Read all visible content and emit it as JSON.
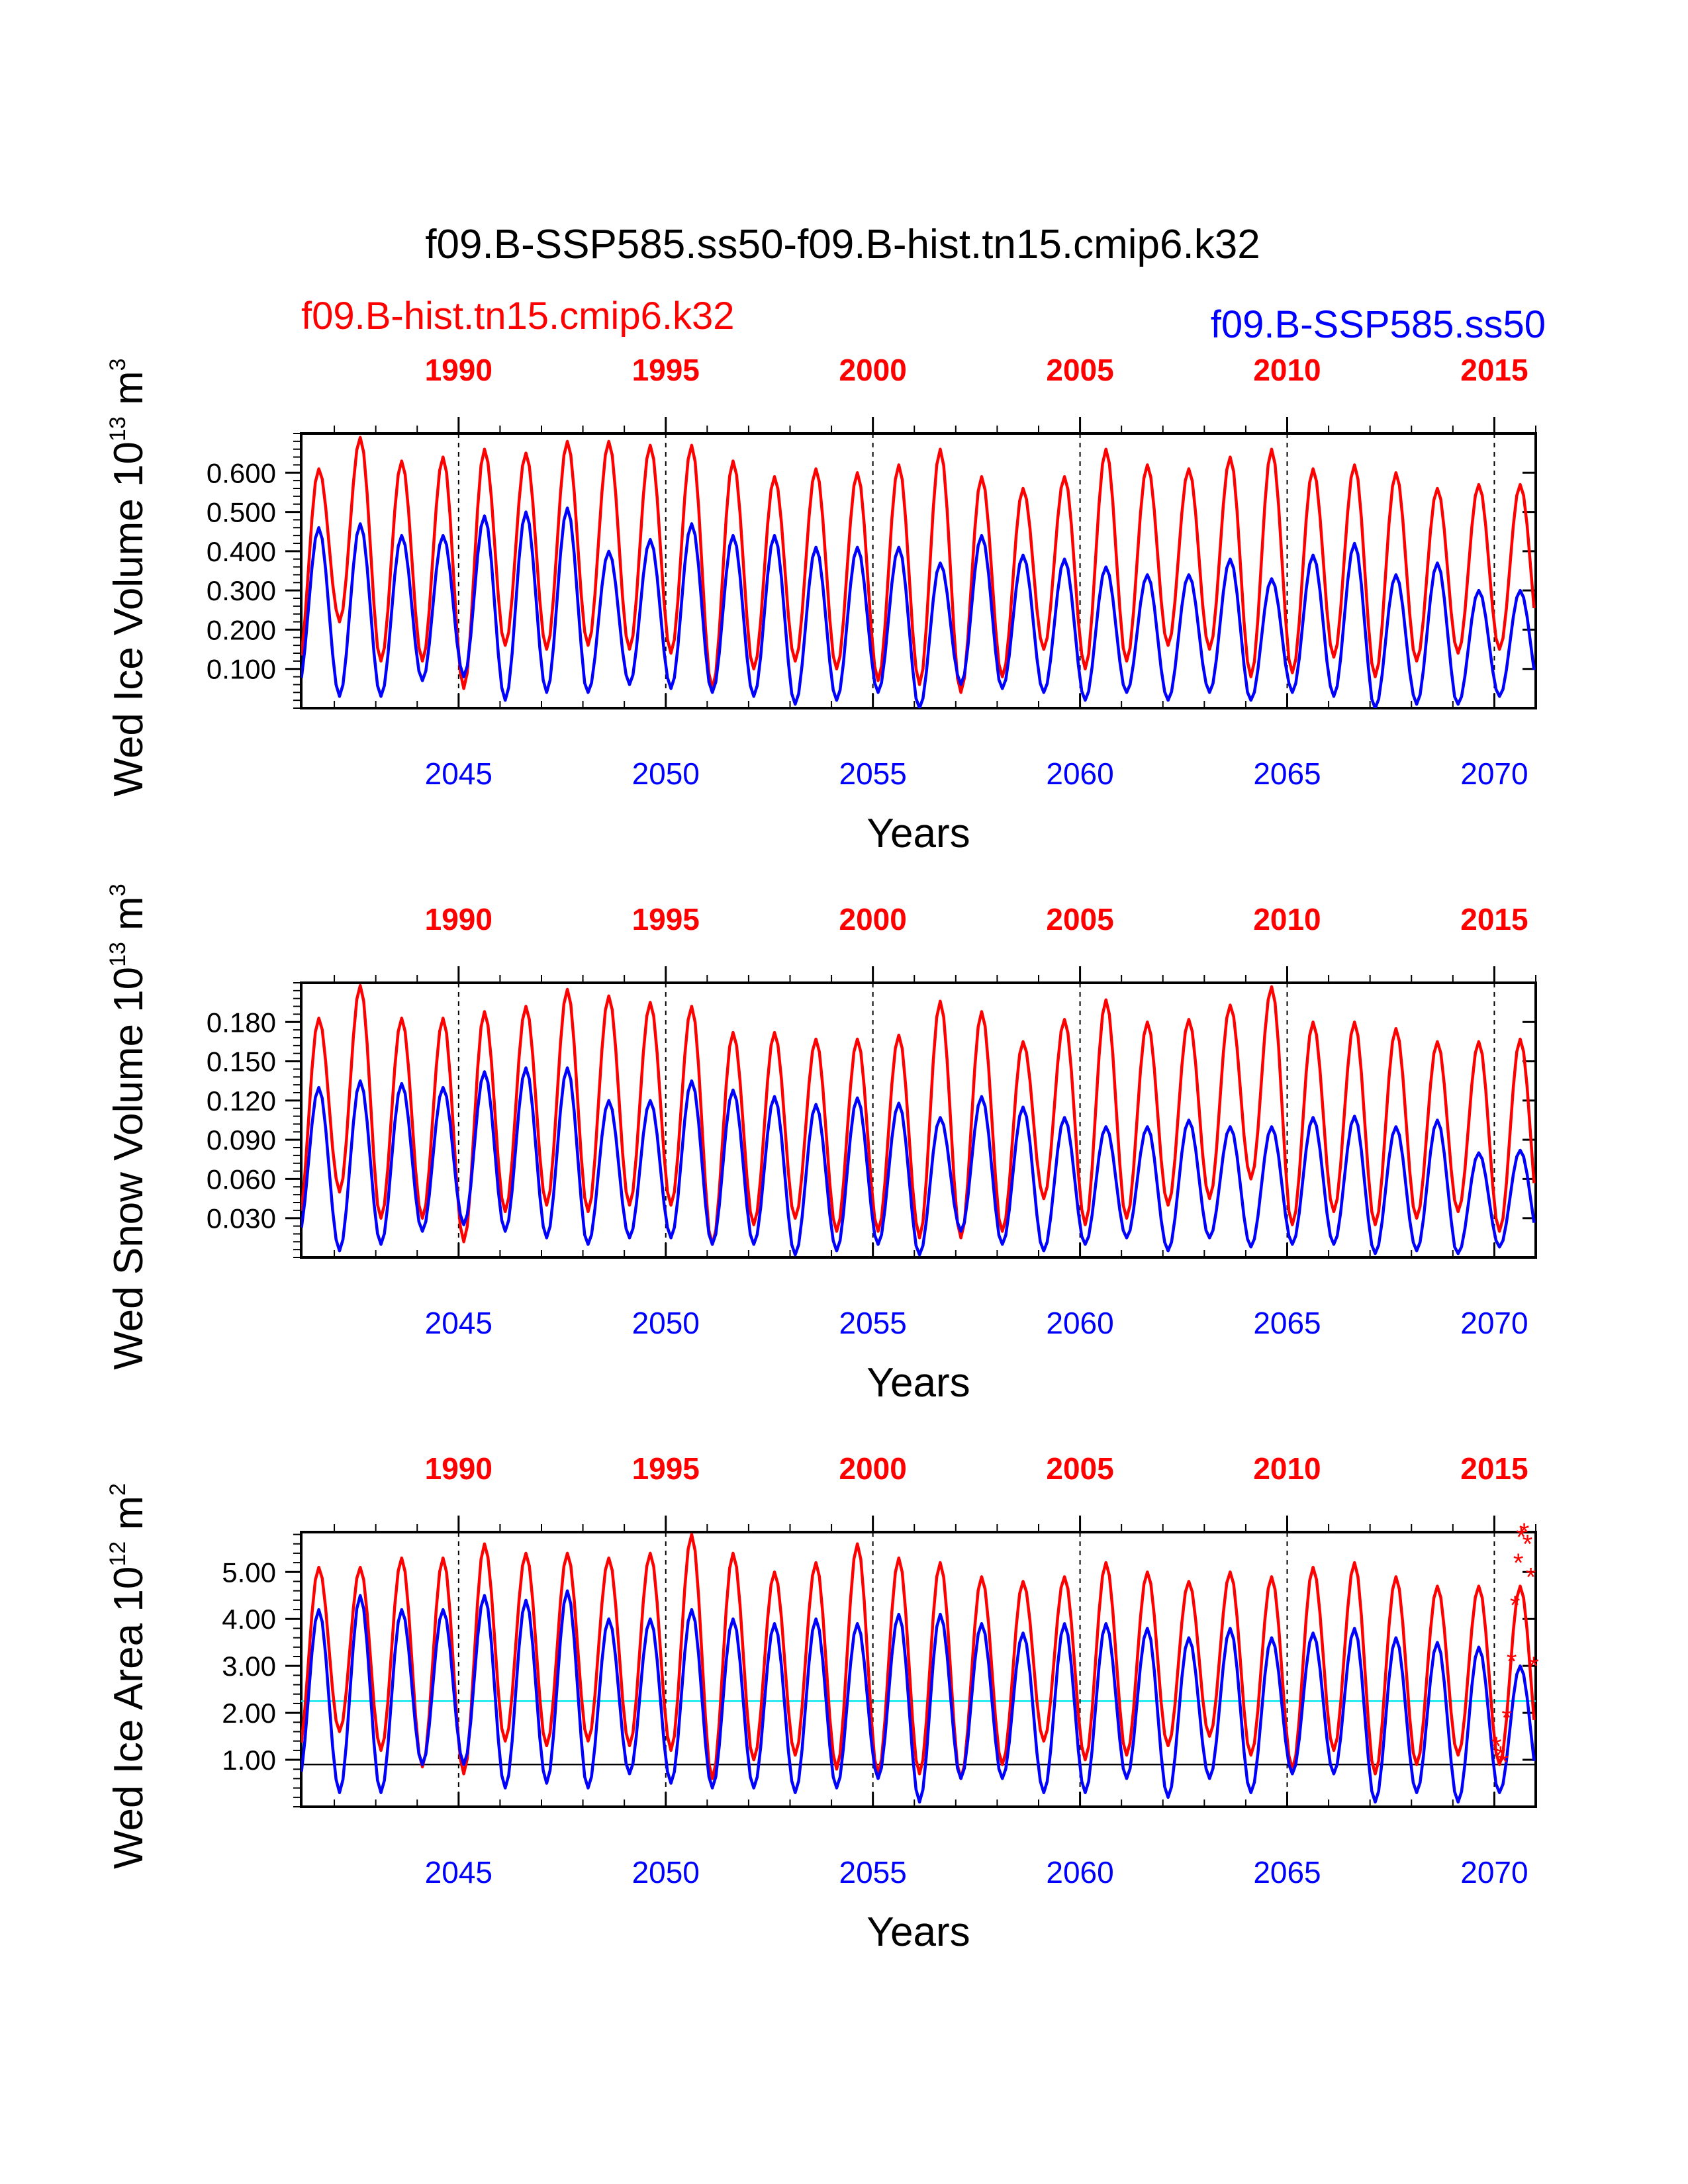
{
  "figure": {
    "title": "f09.B-SSP585.ss50-f09.B-hist.tn15.cmip6.k32",
    "legend_red": "f09.B-hist.tn15.cmip6.k32",
    "legend_blue": "f09.B-SSP585.ss50",
    "colors": {
      "red": "#ff0000",
      "blue": "#0000ff",
      "cyan": "#00e5ee",
      "black": "#000000"
    }
  },
  "chart_data": [
    {
      "type": "line",
      "ylabel": "Wed Ice Volume 10",
      "ylabel_exp": "13",
      "ylabel_unit": " m",
      "ylabel_unit_exp": "3",
      "xlabel": "Years",
      "bottom_axis": {
        "range": [
          2041.2,
          2071.0
        ],
        "ticks": [
          2045,
          2050,
          2055,
          2060,
          2065,
          2070
        ],
        "labels": [
          "2045",
          "2050",
          "2055",
          "2060",
          "2065",
          "2070"
        ]
      },
      "top_axis": {
        "offset": -55,
        "ticks": [
          1990,
          1995,
          2000,
          2005,
          2010,
          2015
        ],
        "labels": [
          "1990",
          "1995",
          "2000",
          "2005",
          "2010",
          "2015"
        ]
      },
      "ylim": [
        0.0,
        0.7
      ],
      "yticks": [
        0.1,
        0.2,
        0.3,
        0.4,
        0.5,
        0.6
      ],
      "ytick_labels": [
        "0.100",
        "0.200",
        "0.300",
        "0.400",
        "0.500",
        "0.600"
      ],
      "series": [
        {
          "name": "f09.B-hist.tn15.cmip6.k32",
          "color": "red",
          "min": [
            0.1,
            0.22,
            0.12,
            0.12,
            0.05,
            0.16,
            0.15,
            0.16,
            0.15,
            0.14,
            0.05,
            0.1,
            0.12,
            0.1,
            0.07,
            0.06,
            0.04,
            0.08,
            0.15,
            0.1,
            0.12,
            0.16,
            0.15,
            0.08,
            0.09,
            0.13,
            0.08,
            0.12,
            0.14,
            0.15
          ],
          "max": [
            0.61,
            0.69,
            0.63,
            0.64,
            0.66,
            0.65,
            0.68,
            0.68,
            0.67,
            0.67,
            0.63,
            0.59,
            0.61,
            0.6,
            0.62,
            0.66,
            0.59,
            0.56,
            0.59,
            0.66,
            0.62,
            0.61,
            0.64,
            0.66,
            0.61,
            0.62,
            0.6,
            0.56,
            0.57,
            0.57
          ]
        },
        {
          "name": "f09.B-SSP585.ss50",
          "color": "blue",
          "min": [
            0.05,
            0.03,
            0.03,
            0.07,
            0.08,
            0.02,
            0.04,
            0.04,
            0.06,
            0.05,
            0.04,
            0.03,
            0.01,
            0.02,
            0.04,
            0.0,
            0.06,
            0.05,
            0.04,
            0.02,
            0.04,
            0.02,
            0.04,
            0.02,
            0.04,
            0.03,
            0.0,
            0.01,
            0.01,
            0.03
          ],
          "max": [
            0.46,
            0.47,
            0.44,
            0.44,
            0.49,
            0.5,
            0.51,
            0.4,
            0.43,
            0.47,
            0.44,
            0.44,
            0.41,
            0.41,
            0.41,
            0.37,
            0.44,
            0.39,
            0.38,
            0.36,
            0.34,
            0.34,
            0.38,
            0.33,
            0.39,
            0.42,
            0.34,
            0.37,
            0.3,
            0.3
          ]
        }
      ],
      "stars": [],
      "hlines": []
    },
    {
      "type": "line",
      "ylabel": "Wed Snow Volume 10",
      "ylabel_exp": "13",
      "ylabel_unit": " m",
      "ylabel_unit_exp": "3",
      "xlabel": "Years",
      "bottom_axis": {
        "range": [
          2041.2,
          2071.0
        ],
        "ticks": [
          2045,
          2050,
          2055,
          2060,
          2065,
          2070
        ],
        "labels": [
          "2045",
          "2050",
          "2055",
          "2060",
          "2065",
          "2070"
        ]
      },
      "top_axis": {
        "offset": -55,
        "ticks": [
          1990,
          1995,
          2000,
          2005,
          2010,
          2015
        ],
        "labels": [
          "1990",
          "1995",
          "2000",
          "2005",
          "2010",
          "2015"
        ]
      },
      "ylim": [
        0.0,
        0.21
      ],
      "yticks": [
        0.03,
        0.06,
        0.09,
        0.12,
        0.15,
        0.18
      ],
      "ytick_labels": [
        "0.030",
        "0.060",
        "0.090",
        "0.120",
        "0.150",
        "0.180"
      ],
      "series": [
        {
          "name": "f09.B-hist.tn15.cmip6.k32",
          "color": "red",
          "min": [
            0.025,
            0.05,
            0.03,
            0.03,
            0.012,
            0.035,
            0.04,
            0.035,
            0.04,
            0.04,
            0.01,
            0.025,
            0.03,
            0.02,
            0.02,
            0.015,
            0.015,
            0.02,
            0.045,
            0.025,
            0.03,
            0.04,
            0.045,
            0.06,
            0.025,
            0.035,
            0.025,
            0.03,
            0.035,
            0.02
          ],
          "max": [
            0.183,
            0.208,
            0.183,
            0.183,
            0.188,
            0.192,
            0.205,
            0.2,
            0.195,
            0.192,
            0.172,
            0.172,
            0.167,
            0.167,
            0.17,
            0.196,
            0.188,
            0.165,
            0.182,
            0.197,
            0.18,
            0.182,
            0.193,
            0.207,
            0.18,
            0.18,
            0.175,
            0.165,
            0.165,
            0.167
          ]
        },
        {
          "name": "f09.B-SSP585.ss50",
          "color": "blue",
          "min": [
            0.015,
            0.005,
            0.01,
            0.02,
            0.025,
            0.02,
            0.015,
            0.01,
            0.015,
            0.015,
            0.01,
            0.01,
            0.002,
            0.005,
            0.01,
            0.002,
            0.02,
            0.01,
            0.005,
            0.01,
            0.015,
            0.005,
            0.015,
            0.008,
            0.01,
            0.01,
            0.003,
            0.005,
            0.003,
            0.008
          ],
          "max": [
            0.13,
            0.135,
            0.133,
            0.13,
            0.142,
            0.145,
            0.145,
            0.12,
            0.12,
            0.135,
            0.128,
            0.123,
            0.117,
            0.122,
            0.118,
            0.107,
            0.123,
            0.115,
            0.107,
            0.1,
            0.1,
            0.105,
            0.1,
            0.1,
            0.107,
            0.108,
            0.1,
            0.105,
            0.08,
            0.082
          ]
        }
      ],
      "stars": [],
      "hlines": []
    },
    {
      "type": "line",
      "ylabel": "Wed Ice Area 10",
      "ylabel_exp": "12",
      "ylabel_unit": " m",
      "ylabel_unit_exp": "2",
      "xlabel": "Years",
      "bottom_axis": {
        "range": [
          2041.2,
          2071.0
        ],
        "ticks": [
          2045,
          2050,
          2055,
          2060,
          2065,
          2070
        ],
        "labels": [
          "2045",
          "2050",
          "2055",
          "2060",
          "2065",
          "2070"
        ]
      },
      "top_axis": {
        "offset": -55,
        "ticks": [
          1990,
          1995,
          2000,
          2005,
          2010,
          2015
        ],
        "labels": [
          "1990",
          "1995",
          "2000",
          "2005",
          "2010",
          "2015"
        ]
      },
      "ylim": [
        0.0,
        5.85
      ],
      "yticks": [
        1.0,
        2.0,
        3.0,
        4.0,
        5.0
      ],
      "ytick_labels": [
        "1.00",
        "2.00",
        "3.00",
        "4.00",
        "5.00"
      ],
      "series": [
        {
          "name": "f09.B-hist.tn15.cmip6.k32",
          "color": "red",
          "min": [
            1.1,
            1.6,
            1.2,
            0.85,
            0.7,
            1.4,
            1.3,
            1.4,
            1.3,
            1.2,
            0.6,
            1.0,
            1.1,
            0.8,
            0.7,
            0.7,
            0.6,
            0.9,
            1.4,
            1.0,
            1.1,
            1.3,
            1.5,
            1.1,
            0.8,
            1.2,
            0.7,
            0.9,
            1.1,
            0.9
          ],
          "max": [
            5.1,
            5.1,
            5.3,
            5.3,
            5.6,
            5.4,
            5.4,
            5.3,
            5.4,
            5.8,
            5.4,
            5.0,
            5.2,
            5.6,
            5.3,
            5.2,
            4.9,
            4.8,
            4.9,
            5.2,
            5.0,
            4.8,
            5.0,
            4.9,
            5.1,
            5.2,
            4.9,
            4.7,
            4.7,
            4.7
          ]
        },
        {
          "name": "f09.B-SSP585.ss50",
          "color": "blue",
          "min": [
            0.5,
            0.3,
            0.3,
            0.9,
            0.9,
            0.4,
            0.5,
            0.4,
            0.7,
            0.5,
            0.4,
            0.4,
            0.3,
            0.4,
            0.6,
            0.1,
            0.6,
            0.6,
            0.3,
            0.3,
            0.6,
            0.2,
            0.6,
            0.3,
            0.7,
            0.7,
            0.1,
            0.3,
            0.1,
            0.3
          ],
          "max": [
            4.2,
            4.5,
            4.2,
            4.2,
            4.5,
            4.4,
            4.6,
            4.0,
            4.0,
            4.2,
            4.0,
            3.9,
            4.0,
            3.9,
            4.1,
            4.1,
            3.9,
            3.7,
            3.9,
            3.9,
            3.8,
            3.6,
            3.8,
            3.6,
            3.7,
            3.8,
            3.6,
            3.5,
            3.4,
            3.0
          ]
        }
      ],
      "stars": [
        {
          "x": 2070.05,
          "y": 1.3
        },
        {
          "x": 2070.15,
          "y": 1.1
        },
        {
          "x": 2070.22,
          "y": 0.95
        },
        {
          "x": 2070.3,
          "y": 1.9
        },
        {
          "x": 2070.42,
          "y": 3.1
        },
        {
          "x": 2070.5,
          "y": 4.3
        },
        {
          "x": 2070.58,
          "y": 5.2
        },
        {
          "x": 2070.65,
          "y": 5.75
        },
        {
          "x": 2070.72,
          "y": 5.85
        },
        {
          "x": 2070.8,
          "y": 5.6
        },
        {
          "x": 2070.88,
          "y": 4.9
        },
        {
          "x": 2070.95,
          "y": 3.0
        }
      ],
      "hlines": [
        {
          "y": 2.25,
          "color": "cyan"
        },
        {
          "y": 0.9,
          "color": "black"
        }
      ]
    }
  ]
}
